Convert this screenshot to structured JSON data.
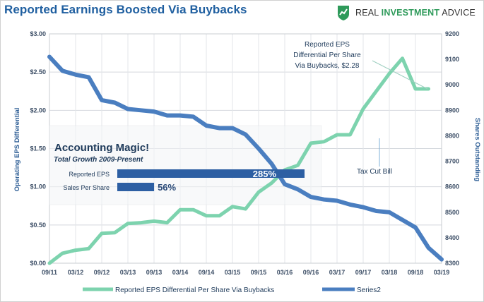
{
  "header": {
    "title": "Reported Earnings Boosted Via Buybacks",
    "brand_prefix": "REAL ",
    "brand_accent": "INVESTMENT",
    "brand_suffix": " ADVICE",
    "brand_icon": "chart-shield-icon"
  },
  "colors": {
    "eps_series": "#7dd3ae",
    "shares_series": "#4a7ec0",
    "bars": "#2d5fa3",
    "title": "#1f5fa0",
    "brand_accent": "#2e9a5a"
  },
  "chart_data": {
    "type": "line",
    "title": "Reported Earnings Boosted Via Buybacks",
    "xlabel": "",
    "ylabel_left": "Operating EPS Differential",
    "ylabel_right": "Shares Outstanding",
    "x_ticks": [
      "09/11",
      "03/12",
      "09/12",
      "03/13",
      "09/13",
      "03/14",
      "09/14",
      "03/15",
      "09/15",
      "03/16",
      "09/16",
      "03/17",
      "09/17",
      "03/18",
      "09/18",
      "03/19"
    ],
    "y_left": {
      "min": 0,
      "max": 3,
      "ticks": [
        "$0.00",
        "$0.50",
        "$1.00",
        "$1.50",
        "$2.00",
        "$2.50",
        "$3.00"
      ]
    },
    "y_right": {
      "min": 8300,
      "max": 9200,
      "ticks": [
        "8300",
        "8400",
        "8500",
        "8600",
        "8700",
        "8800",
        "8900",
        "9000",
        "9100",
        "9200"
      ]
    },
    "grid": true,
    "legend_position": "bottom",
    "series": [
      {
        "name": "Reported EPS Differential Per Share Via Buybacks",
        "axis": "left",
        "x": [
          "09/11",
          "12/11",
          "03/12",
          "06/12",
          "09/12",
          "12/12",
          "03/13",
          "06/13",
          "09/13",
          "12/13",
          "03/14",
          "06/14",
          "09/14",
          "12/14",
          "03/15",
          "06/15",
          "09/15",
          "12/15",
          "03/16",
          "06/16",
          "09/16",
          "12/16",
          "03/17",
          "06/17",
          "09/17",
          "12/17",
          "03/18",
          "06/18",
          "09/18",
          "12/18"
        ],
        "values": [
          0.0,
          0.13,
          0.17,
          0.19,
          0.39,
          0.4,
          0.52,
          0.53,
          0.55,
          0.53,
          0.7,
          0.7,
          0.62,
          0.62,
          0.74,
          0.71,
          0.93,
          1.05,
          1.22,
          1.28,
          1.57,
          1.59,
          1.68,
          1.68,
          2.02,
          2.25,
          2.48,
          2.68,
          2.28,
          2.28
        ]
      },
      {
        "name": "Series2",
        "axis": "right",
        "x": [
          "09/11",
          "12/11",
          "03/12",
          "06/12",
          "09/12",
          "12/12",
          "03/13",
          "06/13",
          "09/13",
          "12/13",
          "03/14",
          "06/14",
          "09/14",
          "12/14",
          "03/15",
          "06/15",
          "09/15",
          "12/15",
          "03/16",
          "06/16",
          "09/16",
          "12/16",
          "03/17",
          "06/17",
          "09/17",
          "12/17",
          "03/18",
          "06/18",
          "09/18",
          "12/18",
          "03/19"
        ],
        "values": [
          9110,
          9055,
          9040,
          9030,
          8940,
          8930,
          8905,
          8900,
          8895,
          8880,
          8880,
          8875,
          8840,
          8830,
          8830,
          8805,
          8750,
          8690,
          8610,
          8590,
          8560,
          8550,
          8545,
          8530,
          8520,
          8505,
          8500,
          8470,
          8440,
          8360,
          8315
        ]
      }
    ],
    "annotations": [
      {
        "lines": [
          "Reported EPS",
          "Differential Per Share",
          "Via Buybacks,  $2.28"
        ]
      },
      {
        "lines": [
          "Tax Cut Bill"
        ]
      }
    ],
    "inset": {
      "title": "Accounting Magic!",
      "subtitle": "Total Growth 2009-Present",
      "bars": [
        {
          "label": "Reported EPS",
          "value": 285,
          "display": "285%"
        },
        {
          "label": "Sales Per Share",
          "value": 56,
          "display": "56%"
        }
      ]
    }
  },
  "legend": {
    "items": [
      "Reported EPS Differential Per Share Via Buybacks",
      "Series2"
    ]
  }
}
